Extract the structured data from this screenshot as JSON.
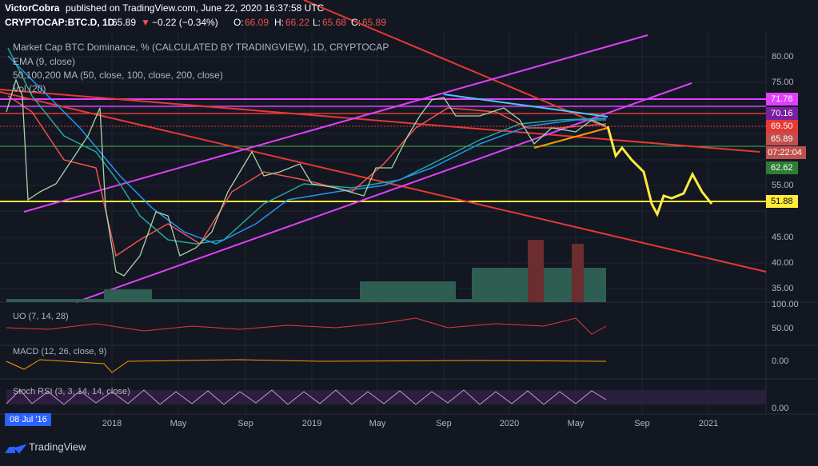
{
  "header": {
    "author": "VictorCobra",
    "published": "published on TradingView.com, June 22, 2020 16:37:58 UTC",
    "symbol": "CRYPTOCAP:BTC.D, 1D",
    "last": "65.89",
    "arrow": "▼",
    "change": "−0.22 (−0.34%)",
    "o_label": "O:",
    "open": "66.09",
    "h_label": "H:",
    "high": "66.22",
    "l_label": "L:",
    "low": "65.68",
    "c_label": "C:",
    "close": "65.89"
  },
  "legend": [
    "Market Cap BTC Dominance, % (CALCULATED BY TRADINGVIEW), 1D, CRYPTOCAP",
    "EMA (9, close)",
    "50,100,200 MA (50, close, 100, close, 200, close)",
    "Vol (20)"
  ],
  "price_axis": [
    "80.00",
    "75.00",
    "55.00",
    "45.00",
    "40.00",
    "35.00"
  ],
  "price_tags": [
    "71.76",
    "70.16",
    "69.50",
    "65.89",
    "07:22:04",
    "62.62",
    "51.88"
  ],
  "panes": [
    {
      "title": "UO (7, 14, 28)",
      "labels": [
        "100.00",
        "50.00"
      ]
    },
    {
      "title": "MACD (12, 26, close, 9)",
      "labels": [
        "0.00"
      ]
    },
    {
      "title": "Stoch RSI (3, 3, 14, 14, close)",
      "labels": [
        "0.00"
      ]
    }
  ],
  "time_axis": [
    "08 Jul '16",
    "2018",
    "May",
    "Sep",
    "2019",
    "May",
    "Sep",
    "2020",
    "May",
    "Sep",
    "2021"
  ],
  "footer": "TradingView"
}
